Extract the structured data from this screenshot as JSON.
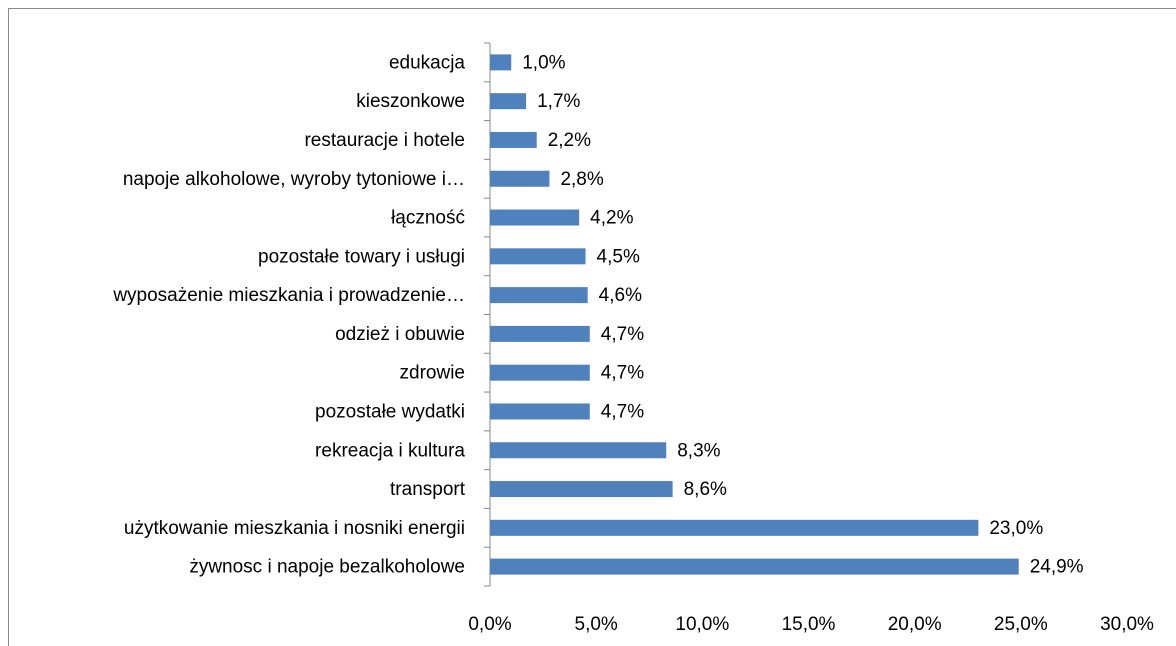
{
  "chart_data": {
    "type": "bar",
    "orientation": "horizontal",
    "categories": [
      "edukacja",
      "kieszonkowe",
      "restauracje i hotele",
      "napoje alkoholowe, wyroby tytoniowe i…",
      "łączność",
      "pozostałe towary i usługi",
      "wyposażenie mieszkania i prowadzenie…",
      "odzież i obuwie",
      "zdrowie",
      "pozostałe wydatki",
      "rekreacja i kultura",
      "transport ",
      "użytkowanie mieszkania i nosniki energii",
      "żywnosc i napoje bezalkoholowe"
    ],
    "values": [
      1.0,
      1.7,
      2.2,
      2.8,
      4.2,
      4.5,
      4.6,
      4.7,
      4.7,
      4.7,
      8.3,
      8.6,
      23.0,
      24.9
    ],
    "value_labels": [
      "1,0%",
      "1,7%",
      "2,2%",
      "2,8%",
      "4,2%",
      "4,5%",
      "4,6%",
      "4,7%",
      "4,7%",
      "4,7%",
      "8,3%",
      "8,6%",
      "23,0%",
      "24,9%"
    ],
    "color": "#4f81bd",
    "xlim": [
      0,
      30
    ],
    "xticks": [
      {
        "value": 0,
        "label": "0,0%"
      },
      {
        "value": 5,
        "label": "5,0%"
      },
      {
        "value": 10,
        "label": "10,0%"
      },
      {
        "value": 15,
        "label": "15,0%"
      },
      {
        "value": 20,
        "label": "20,0%"
      },
      {
        "value": 25,
        "label": "25,0%"
      },
      {
        "value": 30,
        "label": "30,0%"
      }
    ]
  }
}
